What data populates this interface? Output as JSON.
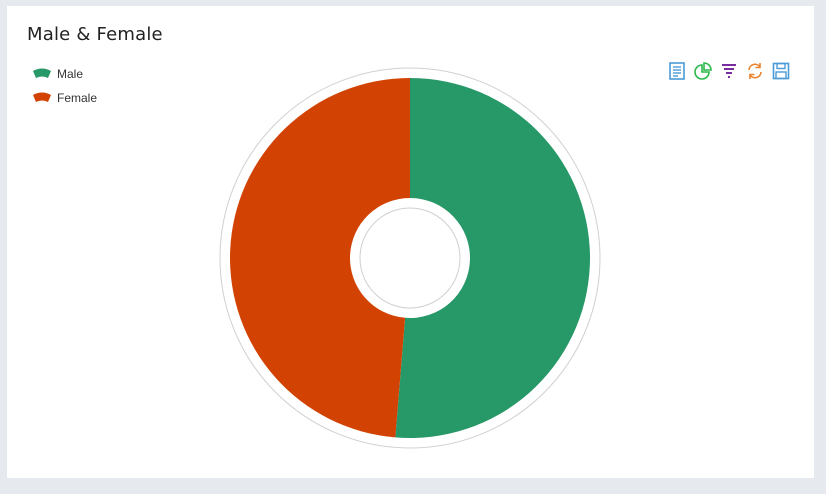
{
  "chart_data": {
    "type": "pie",
    "title": "Male & Female",
    "categories": [
      "Male",
      "Female"
    ],
    "values": [
      51.3,
      48.7
    ],
    "colors": [
      "#279868",
      "#d24303"
    ],
    "legend_position": "top-left"
  },
  "toolbox": {
    "icons": [
      "data-view-icon",
      "pie-type-icon",
      "filter-icon",
      "refresh-icon",
      "save-image-icon"
    ],
    "colors": [
      "#4a9bd8",
      "#2bb84a",
      "#7a2c9e",
      "#e9822b",
      "#4a9bd8"
    ]
  }
}
